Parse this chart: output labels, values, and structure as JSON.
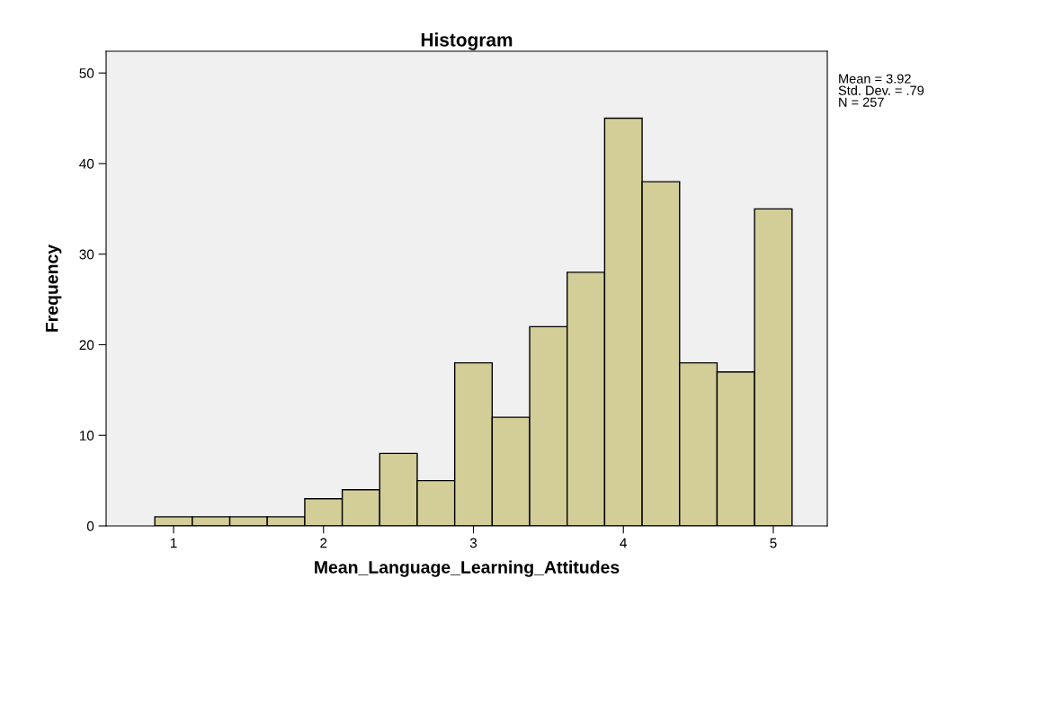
{
  "chart_data": {
    "type": "histogram",
    "title": "Histogram",
    "xlabel": "Mean_Language_Learning_Attitudes",
    "ylabel": "Frequency",
    "bins": [
      0.875,
      1.125,
      1.375,
      1.625,
      1.875,
      2.125,
      2.375,
      2.625,
      2.875,
      3.125,
      3.375,
      3.625,
      3.875,
      4.125,
      4.375,
      4.625,
      4.875,
      5.125
    ],
    "values": [
      1,
      1,
      1,
      1,
      3,
      4,
      8,
      5,
      18,
      12,
      22,
      28,
      45,
      38,
      18,
      17,
      35
    ],
    "color": "#d3ce97",
    "xlim": [
      0.55,
      5.36
    ],
    "xticks": [
      1,
      2,
      3,
      4,
      5
    ],
    "ylim": [
      0,
      52.4
    ],
    "yticks": [
      0,
      10,
      20,
      30,
      40,
      50
    ],
    "grid": false,
    "annotations": [
      "Mean = 3.92\nStd. Dev. = .79\nN = 257"
    ]
  }
}
